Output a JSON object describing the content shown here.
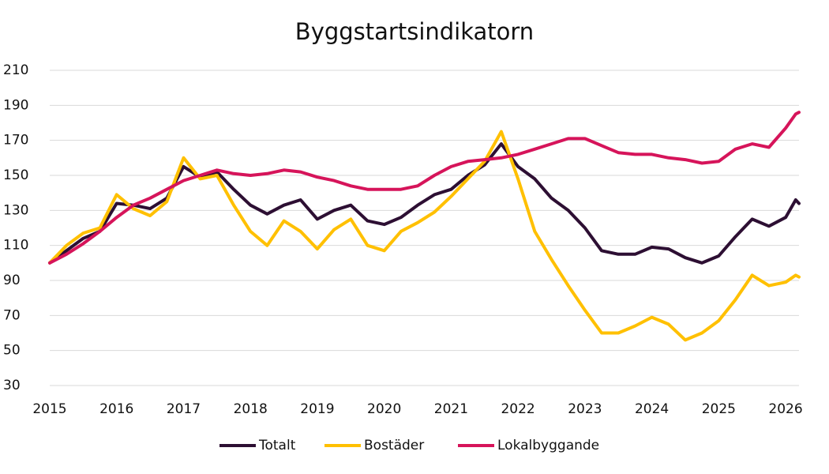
{
  "chart_data": {
    "type": "line",
    "title": "Byggstartsindikatorn",
    "x": [
      2015,
      2015.25,
      2015.5,
      2015.75,
      2016,
      2016.25,
      2016.5,
      2016.75,
      2017,
      2017.25,
      2017.5,
      2017.75,
      2018,
      2018.25,
      2018.5,
      2018.75,
      2019,
      2019.25,
      2019.5,
      2019.75,
      2020,
      2020.25,
      2020.5,
      2020.75,
      2021,
      2021.25,
      2021.5,
      2021.75,
      2022,
      2022.25,
      2022.5,
      2022.75,
      2023,
      2023.25,
      2023.5,
      2023.75,
      2024,
      2024.25,
      2024.5,
      2024.75,
      2025,
      2025.25,
      2025.5,
      2025.75,
      2026,
      2026.15,
      2026.2
    ],
    "series": [
      {
        "name": "Totalt",
        "color": "#2d0f33",
        "values": [
          100,
          107,
          114,
          118,
          134,
          133,
          131,
          137,
          155,
          149,
          152,
          142,
          133,
          128,
          133,
          136,
          125,
          130,
          133,
          124,
          122,
          126,
          133,
          139,
          142,
          150,
          156,
          168,
          155,
          148,
          137,
          130,
          120,
          107,
          105,
          105,
          109,
          108,
          103,
          100,
          104,
          115,
          125,
          121,
          126,
          136,
          134
        ]
      },
      {
        "name": "Bostäder",
        "color": "#ffc000",
        "values": [
          100,
          110,
          117,
          120,
          139,
          131,
          127,
          135,
          160,
          148,
          150,
          133,
          118,
          110,
          124,
          118,
          108,
          119,
          125,
          110,
          107,
          118,
          123,
          129,
          138,
          148,
          158,
          175,
          148,
          118,
          102,
          87,
          73,
          60,
          60,
          64,
          69,
          65,
          56,
          60,
          67,
          79,
          93,
          87,
          89,
          93,
          92
        ]
      },
      {
        "name": "Lokalbyggande",
        "color": "#d6145a",
        "values": [
          100,
          105,
          111,
          118,
          126,
          133,
          137,
          142,
          147,
          150,
          153,
          151,
          150,
          151,
          153,
          152,
          149,
          147,
          144,
          142,
          142,
          142,
          144,
          150,
          155,
          158,
          159,
          160,
          162,
          165,
          168,
          171,
          171,
          167,
          163,
          162,
          162,
          160,
          159,
          157,
          158,
          165,
          168,
          166,
          177,
          185,
          186
        ]
      }
    ],
    "xlim": [
      2015,
      2026.2
    ],
    "xticks": [
      2015,
      2016,
      2017,
      2018,
      2019,
      2020,
      2021,
      2022,
      2023,
      2024,
      2025,
      2026
    ],
    "ylim": [
      30,
      210
    ],
    "yticks": [
      30,
      50,
      70,
      90,
      110,
      130,
      150,
      170,
      190,
      210
    ],
    "grid": true,
    "legend": "bottom"
  }
}
